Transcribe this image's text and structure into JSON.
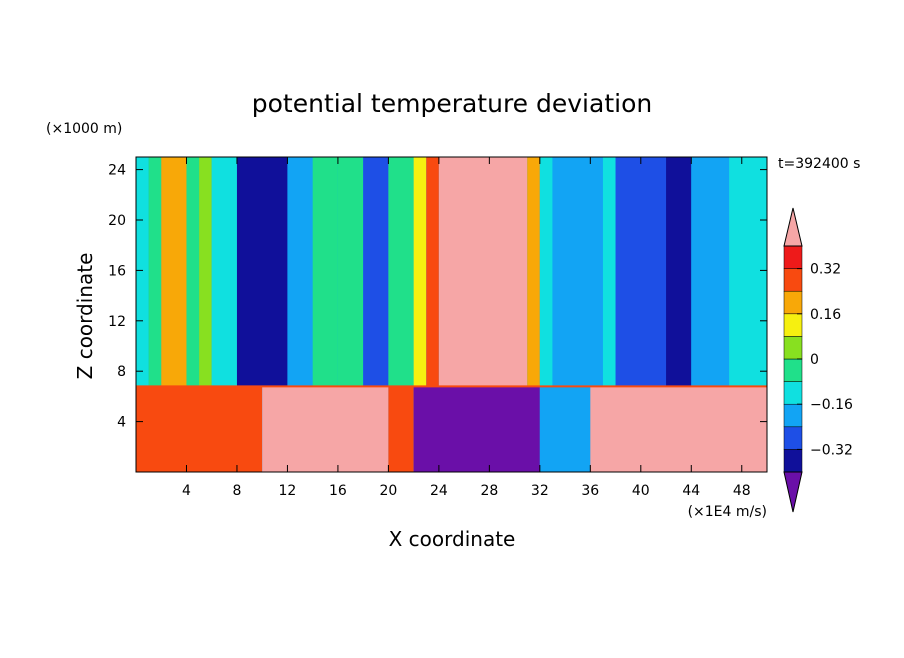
{
  "chart_data": {
    "type": "heatmap",
    "title": "potential temperature deviation",
    "xlabel": "X coordinate",
    "ylabel": "Z coordinate",
    "x_unit": "(×1E4 m/s)",
    "y_unit": "(×1000 m)",
    "time_label": "t=392400 s",
    "xlim": [
      0,
      50
    ],
    "ylim": [
      0,
      25
    ],
    "x_ticks": [
      4,
      8,
      12,
      16,
      20,
      24,
      28,
      32,
      36,
      40,
      44,
      48
    ],
    "y_ticks": [
      4,
      8,
      12,
      16,
      20,
      24
    ],
    "colorbar": {
      "levels": [
        -0.4,
        -0.32,
        -0.24,
        -0.16,
        -0.08,
        0,
        0.08,
        0.16,
        0.24,
        0.32,
        0.4
      ],
      "tick_labels": [
        "0.32",
        "0.16",
        "0",
        "−0.16",
        "−0.32"
      ],
      "tick_values": [
        0.32,
        0.16,
        0,
        -0.16,
        -0.32
      ],
      "colors": [
        "#6a0fa8",
        "#10109a",
        "#1e4fe6",
        "#12a4f4",
        "#10e0e0",
        "#20e08a",
        "#88e020",
        "#f6f010",
        "#f8a808",
        "#f84a10",
        "#ee1a1a",
        "#f6a6a6"
      ],
      "extend": "both"
    },
    "columns_upper": [
      {
        "x": [
          0,
          1
        ],
        "value": -0.12
      },
      {
        "x": [
          1,
          2
        ],
        "value": -0.05
      },
      {
        "x": [
          2,
          4
        ],
        "value": 0.16
      },
      {
        "x": [
          4,
          5
        ],
        "value": -0.05
      },
      {
        "x": [
          5,
          6
        ],
        "value": 0.02
      },
      {
        "x": [
          6,
          8
        ],
        "value": -0.12
      },
      {
        "x": [
          8,
          12
        ],
        "value": -0.34
      },
      {
        "x": [
          12,
          14
        ],
        "value": -0.2
      },
      {
        "x": [
          14,
          16
        ],
        "value": -0.08
      },
      {
        "x": [
          16,
          18
        ],
        "value": -0.05
      },
      {
        "x": [
          18,
          20
        ],
        "value": -0.25
      },
      {
        "x": [
          20,
          22
        ],
        "value": -0.05
      },
      {
        "x": [
          22,
          23
        ],
        "value": 0.1
      },
      {
        "x": [
          23,
          24
        ],
        "value": 0.3
      },
      {
        "x": [
          24,
          31
        ],
        "value": 0.5
      },
      {
        "x": [
          31,
          32
        ],
        "value": 0.2
      },
      {
        "x": [
          32,
          33
        ],
        "value": -0.1
      },
      {
        "x": [
          33,
          37
        ],
        "value": -0.2
      },
      {
        "x": [
          37,
          38
        ],
        "value": -0.12
      },
      {
        "x": [
          38,
          42
        ],
        "value": -0.3
      },
      {
        "x": [
          42,
          44
        ],
        "value": -0.36
      },
      {
        "x": [
          44,
          47
        ],
        "value": -0.22
      },
      {
        "x": [
          47,
          50
        ],
        "value": -0.12
      }
    ],
    "columns_lower": [
      {
        "x": [
          0,
          10
        ],
        "value": 0.3
      },
      {
        "x": [
          10,
          20
        ],
        "value": 0.4
      },
      {
        "x": [
          20,
          22
        ],
        "value": 0.25
      },
      {
        "x": [
          22,
          32
        ],
        "value": -0.45
      },
      {
        "x": [
          32,
          36
        ],
        "value": -0.2
      },
      {
        "x": [
          36,
          50
        ],
        "value": 0.45
      }
    ],
    "interface_z": 6.8
  }
}
